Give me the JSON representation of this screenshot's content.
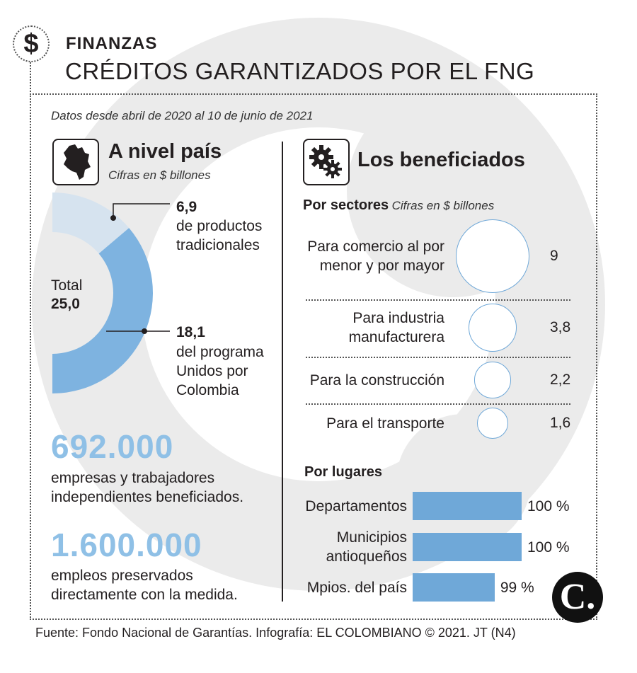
{
  "section": "FINANZAS",
  "title": "CRÉDITOS GARANTIZADOS POR EL FNG",
  "subtitle": "Datos desde abril de 2020 al 10 de junio de 2021",
  "icons": {
    "dollar": "dollar-icon",
    "map": "colombia-map-icon",
    "gears": "gears-icon",
    "logo": "el-colombiano-logo"
  },
  "left": {
    "heading": "A nivel país",
    "units": "Cifras en $ billones",
    "total_label": "Total",
    "total_value": "25,0",
    "seg1_value": "6,9",
    "seg1_line1": "de productos",
    "seg1_line2": "tradicionales",
    "seg2_value": "18,1",
    "seg2_line1": "del programa",
    "seg2_line2": "Unidos por",
    "seg2_line3": "Colombia",
    "stat1_value": "692.000",
    "stat1_line1": "empresas y trabajadores",
    "stat1_line2": "independientes beneficiados.",
    "stat2_value": "1.600.000",
    "stat2_line1": "empleos preservados",
    "stat2_line2": "directamente con la medida."
  },
  "right": {
    "heading": "Los beneficiados",
    "sectors_label": "Por sectores",
    "sectors_units": "Cifras en $ billones",
    "places_label": "Por lugares"
  },
  "chart_data": [
    {
      "type": "pie",
      "style": "half-donut",
      "categories": [
        "de productos tradicionales",
        "del programa Unidos por Colombia"
      ],
      "values": [
        6.9,
        18.1
      ],
      "total": 25.0,
      "colors": [
        "#d6e3ef",
        "#7eb3e0"
      ]
    },
    {
      "type": "bubble",
      "categories": [
        [
          "Para comercio al por",
          "menor y por mayor"
        ],
        [
          "Para industria",
          "manufacturera"
        ],
        [
          "Para la construcción"
        ],
        [
          "Para el transporte"
        ]
      ],
      "values": [
        9,
        3.8,
        2.2,
        1.6
      ],
      "value_labels": [
        "9",
        "3,8",
        "2,2",
        "1,6"
      ],
      "stroke_color": "#6fa8d8"
    },
    {
      "type": "bar",
      "orientation": "horizontal",
      "categories": [
        [
          "Departamentos"
        ],
        [
          "Municipios",
          "antioqueños"
        ],
        [
          "Mpios. del país"
        ]
      ],
      "values": [
        100,
        100,
        99
      ],
      "value_labels": [
        "100 %",
        "100 %",
        "99 %"
      ],
      "xlim": [
        0,
        100
      ],
      "color": "#6fa8d8"
    }
  ],
  "source": "Fuente: Fondo Nacional de Garantías. Infografía: EL COLOMBIANO © 2021. JT (N4)"
}
